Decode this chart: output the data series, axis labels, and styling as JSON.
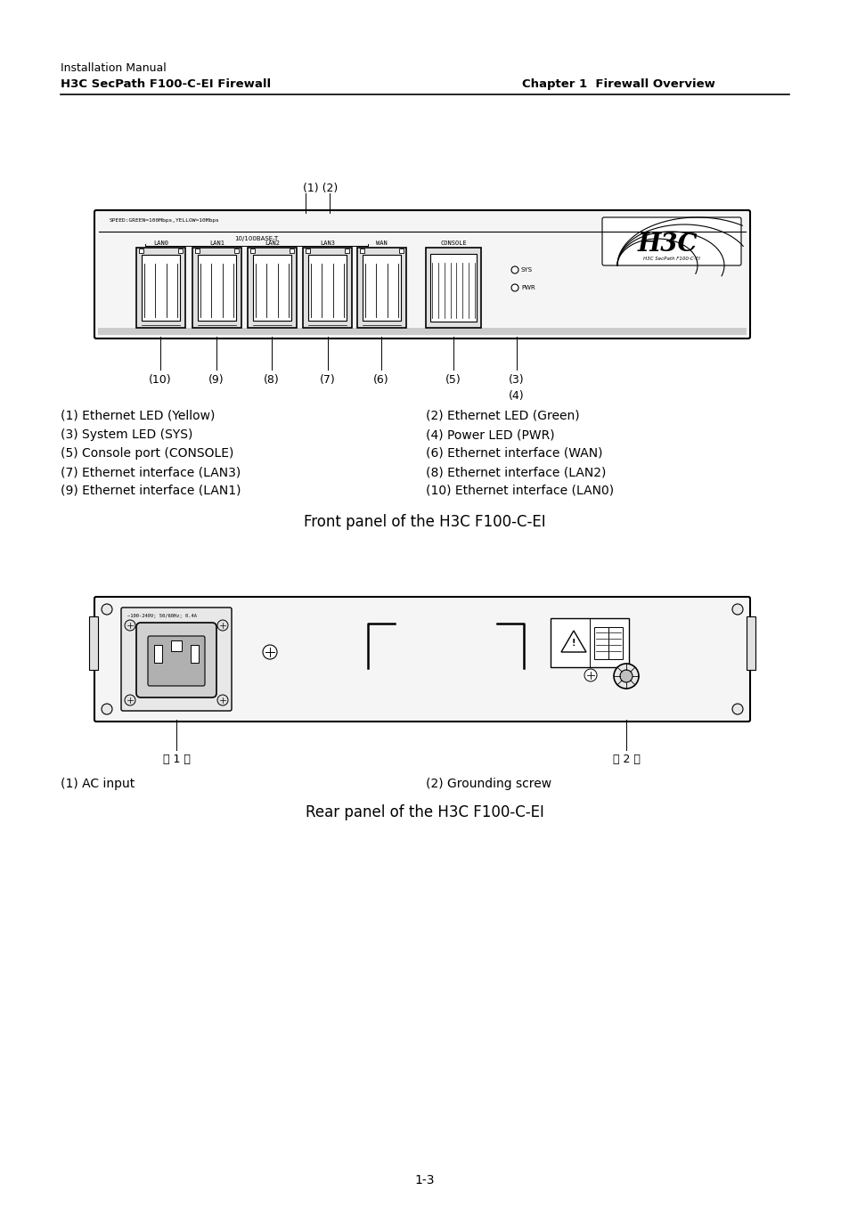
{
  "bg_color": "#ffffff",
  "header_line1": "Installation Manual",
  "header_line2": "H3C SecPath F100-C-EI Firewall",
  "header_right": "Chapter 1  Firewall Overview",
  "front_labels_left": [
    "(1) Ethernet LED (Yellow)",
    "(3) System LED (SYS)",
    "(5) Console port (CONSOLE)",
    "(7) Ethernet interface (LAN3)",
    "(9) Ethernet interface (LAN1)"
  ],
  "front_labels_right": [
    "(2) Ethernet LED (Green)",
    "(4) Power LED (PWR)",
    "(6) Ethernet interface (WAN)",
    "(8) Ethernet interface (LAN2)",
    "(10) Ethernet interface (LAN0)"
  ],
  "front_caption": "Front panel of the H3C F100-C-EI",
  "rear_labels_left": "(1) AC input",
  "rear_labels_right": "(2) Grounding screw",
  "rear_caption": "Rear panel of the H3C F100-C-EI",
  "page_number": "1-3",
  "lc": "#000000",
  "tc": "#000000"
}
